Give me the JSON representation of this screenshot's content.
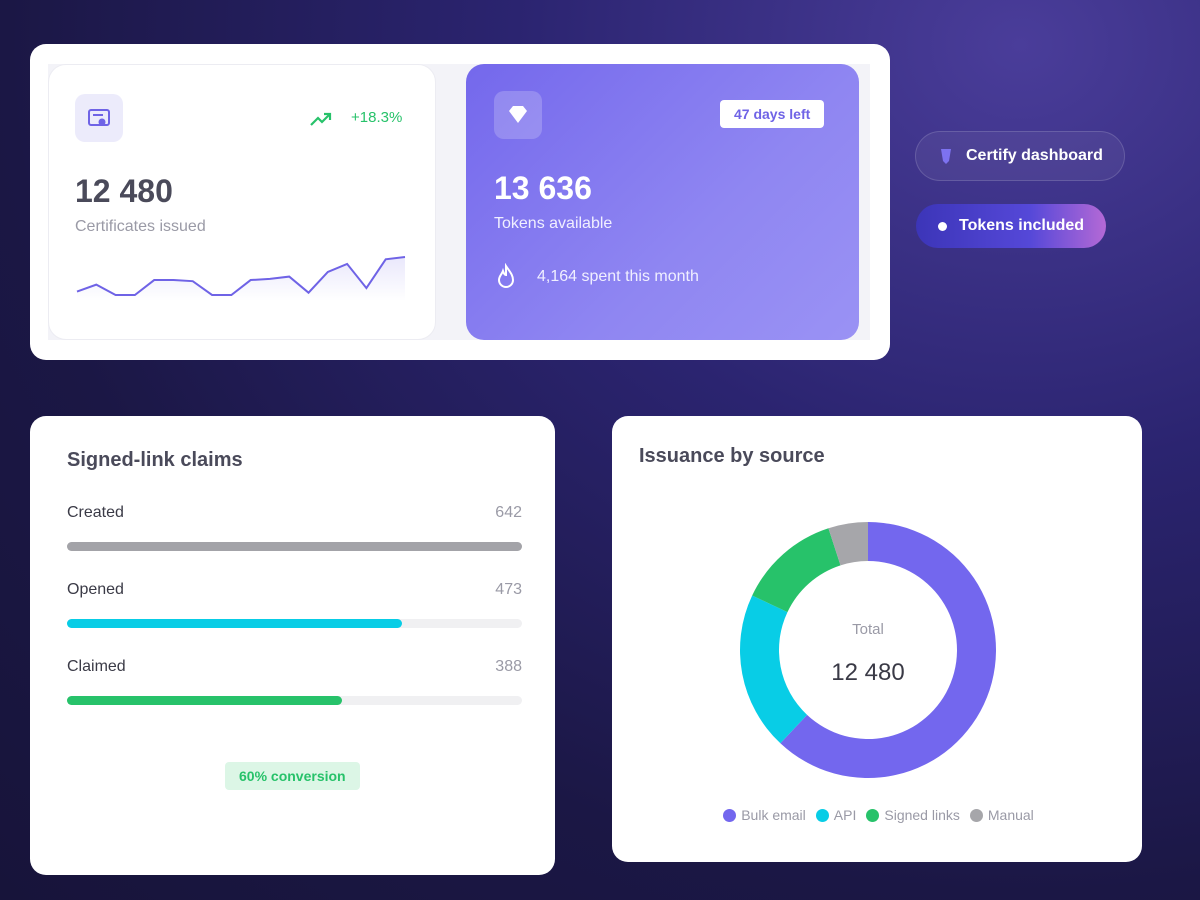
{
  "stat_card": {
    "trend": "+18.3%",
    "value": "12 480",
    "label": "Certificates issued",
    "sparkline": {
      "color": "#6f63e6",
      "values": [
        14,
        20,
        11,
        11,
        24,
        24,
        23,
        11,
        11,
        24,
        25,
        27,
        13,
        31,
        38,
        17,
        42,
        44
      ]
    }
  },
  "tokens_card": {
    "badge": "47 days left",
    "value": "13 636",
    "label": "Tokens available",
    "note": "4,164 spent this month"
  },
  "pills": [
    "Certify dashboard",
    "Tokens included"
  ],
  "claims": {
    "title": "Signed-link claims",
    "rows": [
      {
        "label": "Created",
        "value": 642,
        "color": "#a3a3a8"
      },
      {
        "label": "Opened",
        "value": 473,
        "color": "#08cde6"
      },
      {
        "label": "Claimed",
        "value": 388,
        "color": "#27c26a"
      }
    ],
    "footer": "60% conversion"
  },
  "issuance": {
    "title": "Issuance by source",
    "center_label": "Total",
    "center_value": "12 480",
    "segments": [
      {
        "name": "Bulk email",
        "value": 62,
        "color": "#7367ee"
      },
      {
        "name": "API",
        "value": 20,
        "color": "#08cde6"
      },
      {
        "name": "Signed links",
        "value": 13,
        "color": "#27c26a"
      },
      {
        "name": "Manual",
        "value": 5,
        "color": "#a6a6aa"
      }
    ]
  }
}
